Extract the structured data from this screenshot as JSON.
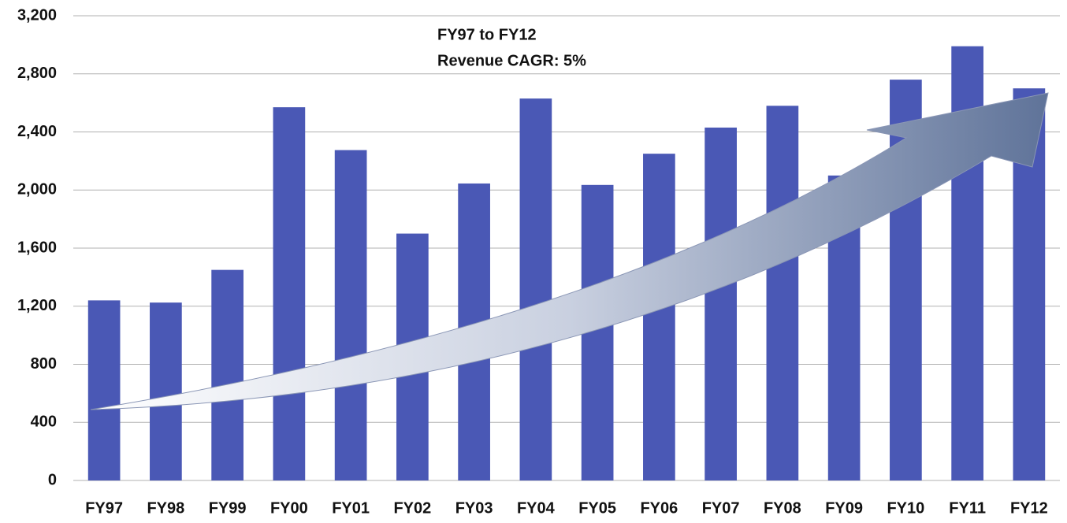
{
  "chart_data": {
    "type": "bar",
    "annotation": [
      "FY97 to FY12",
      "Revenue CAGR: 5%"
    ],
    "categories": [
      "FY97",
      "FY98",
      "FY99",
      "FY00",
      "FY01",
      "FY02",
      "FY03",
      "FY04",
      "FY05",
      "FY06",
      "FY07",
      "FY08",
      "FY09",
      "FY10",
      "FY11",
      "FY12"
    ],
    "values": [
      1240,
      1225,
      1450,
      2570,
      2275,
      1700,
      2045,
      2630,
      2035,
      2250,
      2430,
      2580,
      2100,
      2760,
      2990,
      2700
    ],
    "color": "#4a58b5",
    "ylim": [
      0,
      3200
    ],
    "yticks": [
      0,
      400,
      800,
      {
        "value": 1200,
        "label": "1,200"
      },
      {
        "value": 1600,
        "label": "1,600"
      },
      {
        "value": 2000,
        "label": "2,000"
      },
      {
        "value": 2400,
        "label": "2,400"
      },
      {
        "value": 2800,
        "label": "2,800"
      },
      {
        "value": 3200,
        "label": "3,200"
      }
    ],
    "grid": true
  }
}
